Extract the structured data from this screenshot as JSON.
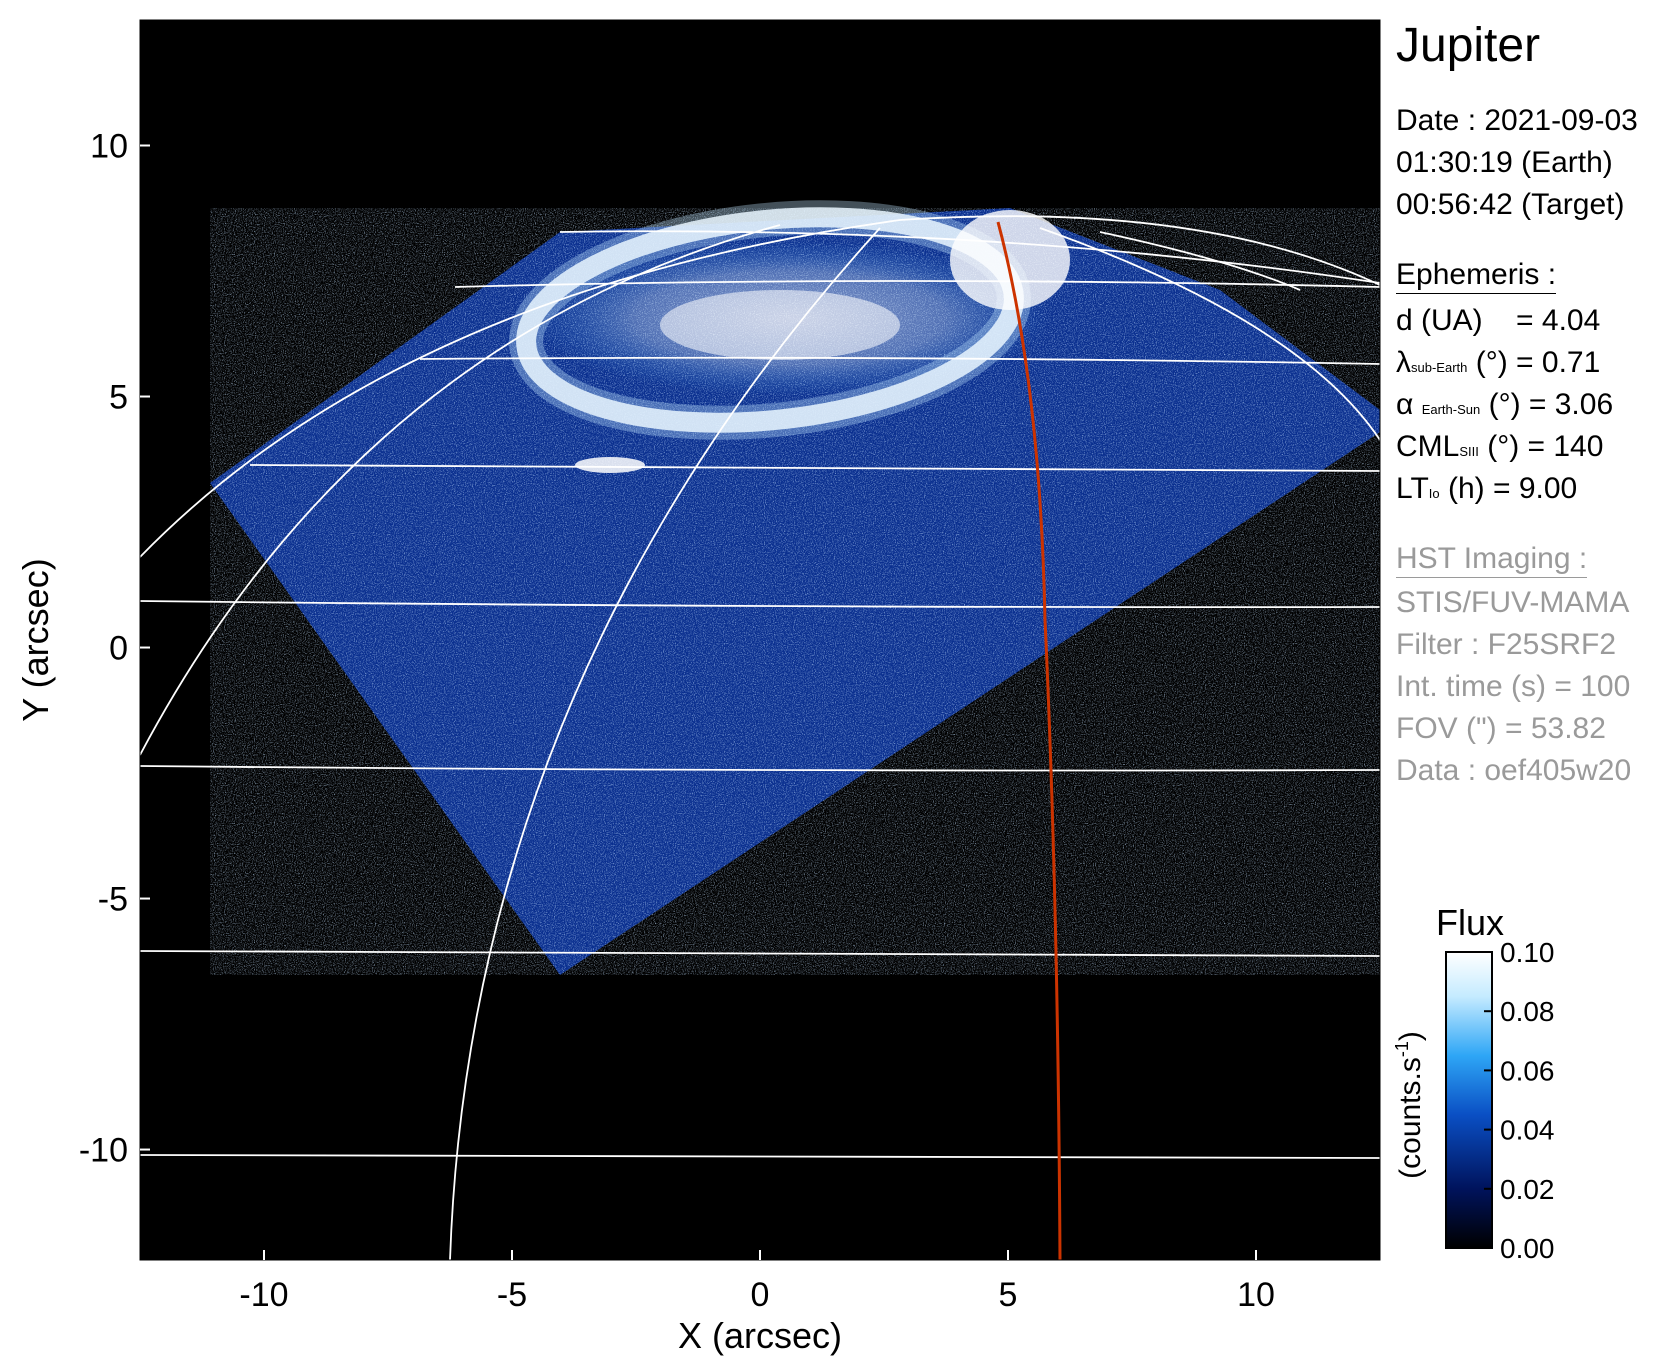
{
  "chart_data": {
    "type": "heatmap",
    "subject": "Jupiter",
    "xlabel": "X (arcsec)",
    "ylabel": "Y (arcsec)",
    "xlim": [
      -12.5,
      12.5
    ],
    "ylim": [
      -12.2,
      12.5
    ],
    "xticks": [
      "-10",
      "-5",
      "0",
      "5",
      "10"
    ],
    "yticks": [
      "10",
      "5",
      "0",
      "-5",
      "-10"
    ],
    "xtick_values": [
      -10,
      -5,
      0,
      5,
      10
    ],
    "ytick_values": [
      10,
      5,
      0,
      -5,
      -10
    ],
    "colorbar": {
      "title": "Flux",
      "unit_label": "(counts.s",
      "unit_exp": "-1",
      "unit_close": ")",
      "range": [
        0.0,
        0.1
      ],
      "ticks": [
        "0.10",
        "0.08",
        "0.06",
        "0.04",
        "0.02",
        "0.00"
      ],
      "tick_values": [
        0.1,
        0.08,
        0.06,
        0.04,
        0.02,
        0.0
      ],
      "colors": [
        "#000000",
        "#00135c",
        "#0a4fc4",
        "#2ea6f6",
        "#c5ebff",
        "#ffffff"
      ]
    },
    "overlay": {
      "grid_color": "#ffffff",
      "io_footprint_color": "#cc3300"
    }
  },
  "info": {
    "title": "Jupiter",
    "date": "Date : 2021-09-03",
    "time_earth": "01:30:19 (Earth)",
    "time_target": "00:56:42 (Target)",
    "ephemeris_header": "Ephemeris :",
    "d_label": "d (UA)",
    "d_value": "= 4.04",
    "lambda_sym": "λ",
    "lambda_sub": "sub-Earth",
    "lambda_value": "(°) = 0.71",
    "alpha_sym": "α",
    "alpha_sub": "Earth-Sun",
    "alpha_value": "(°) = 3.06",
    "cml_sym": "CML",
    "cml_sub": "SIII",
    "cml_value": "(°) = 140",
    "lt_sym": "LT",
    "lt_sub": "Io",
    "lt_value": "(h) = 9.00",
    "hst_header": "HST Imaging :",
    "instrument": "STIS/FUV-MAMA",
    "filter": "Filter : F25SRF2",
    "int_time": "Int. time (s) = 100",
    "fov": "FOV (\") = 53.82",
    "data_id": "Data : oef405w20"
  }
}
